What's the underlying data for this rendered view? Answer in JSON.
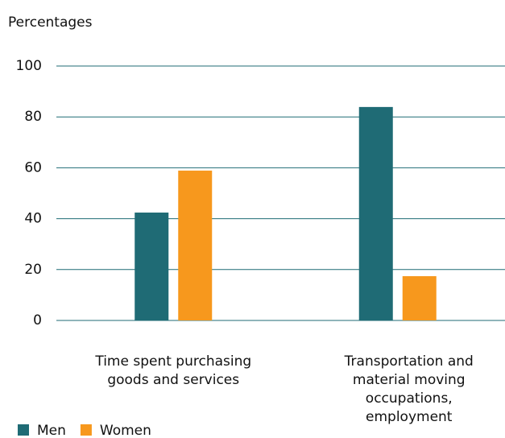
{
  "chart_data": {
    "type": "bar",
    "ylabel": "Percentages",
    "categories": [
      "Time spent purchasing goods and services",
      "Transportation and material moving occupations, employment"
    ],
    "series": [
      {
        "name": "Men",
        "color": "#1f6b75",
        "values": [
          42.4,
          83.9
        ]
      },
      {
        "name": "Women",
        "color": "#f7981d",
        "values": [
          58.9,
          17.4
        ]
      }
    ],
    "ylim": [
      0,
      100
    ],
    "yticks": [
      0,
      20,
      40,
      60,
      80,
      100
    ],
    "grid": true,
    "legend": "bottom-left"
  }
}
